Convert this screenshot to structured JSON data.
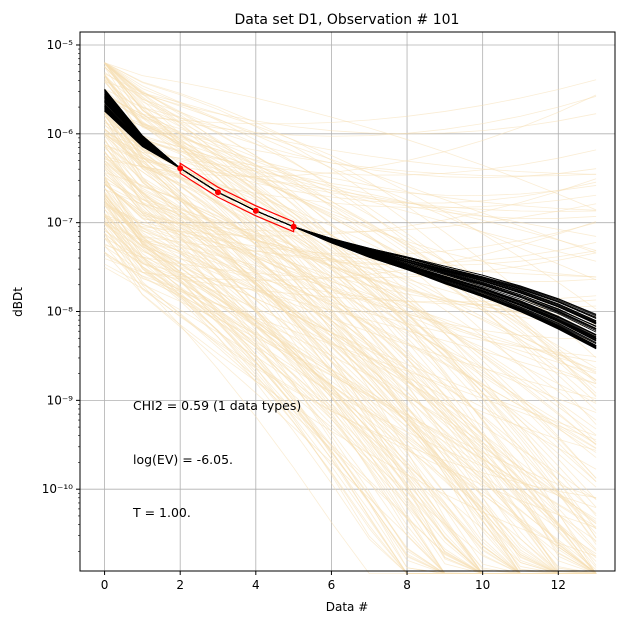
{
  "chart_data": {
    "type": "line",
    "title": "Data set D1, Observation # 101",
    "xlabel": "Data #",
    "ylabel": "dBDt",
    "xlim": [
      -0.65,
      13.5
    ],
    "ylim": [
      1.2e-11,
      1.4e-05
    ],
    "yscale": "log",
    "grid": true,
    "x_ticks": [
      0,
      2,
      4,
      6,
      8,
      10,
      12
    ],
    "y_ticks": [
      {
        "value": 1e-05,
        "label": "10⁻⁵"
      },
      {
        "value": 1e-06,
        "label": "10⁻⁶"
      },
      {
        "value": 1e-07,
        "label": "10⁻⁷"
      },
      {
        "value": 1e-08,
        "label": "10⁻⁸"
      },
      {
        "value": 1e-09,
        "label": "10⁻⁹"
      },
      {
        "value": 1e-10,
        "label": "10⁻¹⁰"
      }
    ],
    "observed": {
      "x": [
        2,
        3,
        4,
        5
      ],
      "y": [
        4.1e-07,
        2.2e-07,
        1.36e-07,
        9e-08
      ],
      "color": "#ff0000"
    },
    "posterior_typical": {
      "x": [
        0,
        1,
        2,
        3,
        4,
        5,
        6,
        7,
        8,
        9,
        10,
        11,
        12,
        13
      ],
      "y": [
        2.4e-06,
        8.3e-07,
        4.1e-07,
        2.2e-07,
        1.36e-07,
        9e-08,
        6.3e-08,
        4.6e-08,
        3.5e-08,
        2.6e-08,
        1.95e-08,
        1.4e-08,
        9.5e-09,
        6e-09
      ],
      "color": "#000000"
    },
    "prior_color": "#f5deb3",
    "annotations": [
      "CHI2 = 0.59 (1 data types)",
      "log(EV) = -6.05.",
      "T = 1.00."
    ]
  }
}
